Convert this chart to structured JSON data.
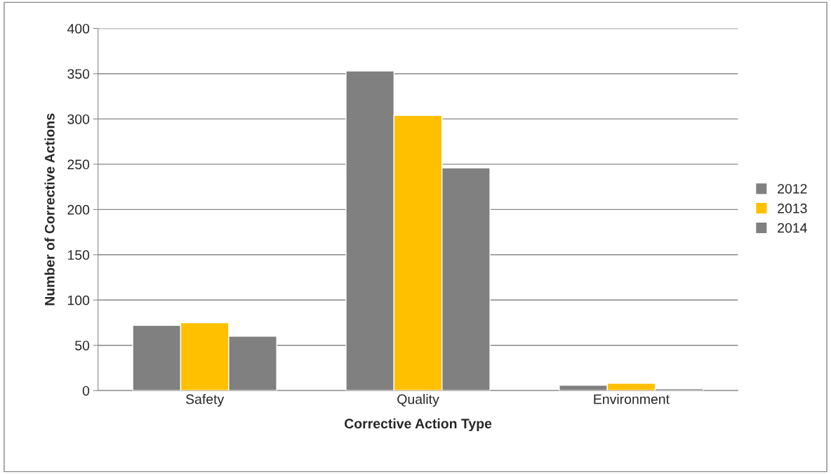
{
  "chart_data": {
    "type": "bar",
    "xlabel": "Corrective Action Type",
    "ylabel": "Number of Corrective Actions",
    "categories": [
      "Safety",
      "Quality",
      "Environment"
    ],
    "series": [
      {
        "name": "2012",
        "color": "#808080",
        "values": [
          72,
          353,
          6
        ]
      },
      {
        "name": "2013",
        "color": "#ffc000",
        "values": [
          75,
          304,
          8
        ]
      },
      {
        "name": "2014",
        "color": "#808080",
        "values": [
          60,
          246,
          2
        ]
      }
    ],
    "ylim": [
      0,
      400
    ],
    "yticks": [
      0,
      50,
      100,
      150,
      200,
      250,
      300,
      350,
      400
    ],
    "grid": "y",
    "legend": "right"
  }
}
